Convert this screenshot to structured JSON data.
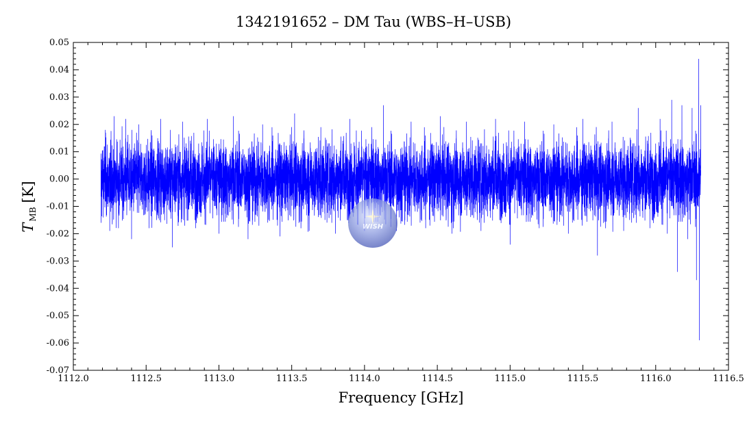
{
  "chart_data": {
    "type": "line",
    "title": "1342191652 – DM Tau (WBS–H–USB)",
    "xlabel": "Frequency [GHz]",
    "ylabel_main": "T",
    "ylabel_sub": "MB",
    "ylabel_unit": "[K]",
    "xlim": [
      1112.0,
      1116.5
    ],
    "ylim": [
      -0.07,
      0.05
    ],
    "xticks": [
      1112.0,
      1112.5,
      1113.0,
      1113.5,
      1114.0,
      1114.5,
      1115.0,
      1115.5,
      1116.0,
      1116.5
    ],
    "xtick_labels": [
      "1112.0",
      "1112.5",
      "1113.0",
      "1113.5",
      "1114.0",
      "1114.5",
      "1115.0",
      "1115.5",
      "1116.0",
      "1116.5"
    ],
    "yticks": [
      -0.07,
      -0.06,
      -0.05,
      -0.04,
      -0.03,
      -0.02,
      -0.01,
      0.0,
      0.01,
      0.02,
      0.03,
      0.04,
      0.05
    ],
    "ytick_labels": [
      "-0.07",
      "-0.06",
      "-0.05",
      "-0.04",
      "-0.03",
      "-0.02",
      "-0.01",
      "0.00",
      "0.01",
      "0.02",
      "0.03",
      "0.04",
      "0.05"
    ],
    "grid": false,
    "series": [
      {
        "color": "#0000ff",
        "x_range": [
          1112.19,
          1116.31
        ],
        "noise_rms_K": 0.007,
        "typical_envelope_K": [
          -0.02,
          0.022
        ],
        "x": [
          1112.19,
          1112.22,
          1112.25,
          1112.28,
          1112.31,
          1112.36,
          1112.4,
          1112.45,
          1112.52,
          1112.6,
          1112.68,
          1112.75,
          1112.84,
          1112.92,
          1113.0,
          1113.1,
          1113.2,
          1113.3,
          1113.42,
          1113.52,
          1113.62,
          1113.7,
          1113.8,
          1113.9,
          1114.0,
          1114.05,
          1114.13,
          1114.22,
          1114.32,
          1114.42,
          1114.52,
          1114.6,
          1114.7,
          1114.8,
          1114.9,
          1115.0,
          1115.1,
          1115.2,
          1115.3,
          1115.4,
          1115.5,
          1115.6,
          1115.7,
          1115.78,
          1115.88,
          1115.96,
          1116.03,
          1116.08,
          1116.11,
          1116.15,
          1116.18,
          1116.22,
          1116.25,
          1116.28,
          1116.295,
          1116.3,
          1116.31
        ],
        "y": [
          -0.016,
          0.018,
          -0.019,
          0.023,
          -0.018,
          0.022,
          -0.022,
          0.02,
          -0.018,
          0.022,
          -0.025,
          0.021,
          -0.018,
          0.022,
          -0.02,
          0.023,
          -0.022,
          0.02,
          -0.021,
          0.024,
          -0.019,
          0.019,
          -0.02,
          0.022,
          -0.019,
          0.019,
          0.027,
          -0.019,
          0.021,
          -0.018,
          0.023,
          -0.02,
          0.021,
          -0.019,
          0.022,
          -0.024,
          0.021,
          -0.018,
          0.02,
          -0.02,
          0.022,
          -0.028,
          0.021,
          -0.019,
          0.026,
          -0.018,
          0.022,
          -0.02,
          0.029,
          -0.034,
          0.027,
          -0.022,
          0.026,
          -0.037,
          0.044,
          -0.059,
          0.027
        ]
      }
    ]
  },
  "logo": {
    "text": "WISH"
  },
  "colors": {
    "line": "#0000ff",
    "axes": "#000000",
    "logo": "#5a6ec8"
  }
}
